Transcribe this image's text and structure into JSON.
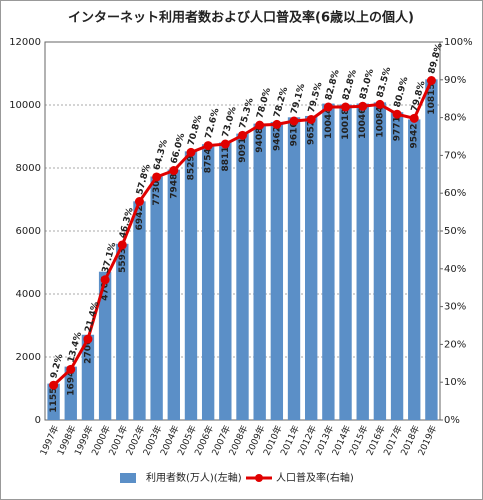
{
  "chart_data": {
    "type": "bar",
    "title": "インターネット利用者数および人口普及率(6歳以上の個人)",
    "categories": [
      "1997年",
      "1998年",
      "1999年",
      "2000年",
      "2001年",
      "2002年",
      "2003年",
      "2004年",
      "2005年",
      "2006年",
      "2007年",
      "2008年",
      "2009年",
      "2010年",
      "2011年",
      "2012年",
      "2013年",
      "2014年",
      "2015年",
      "2016年",
      "2017年",
      "2018年",
      "2019年"
    ],
    "series": [
      {
        "name": "利用者数(万人)(左軸)",
        "type": "bar",
        "color": "#5b8fc7",
        "values": [
          1155,
          1694,
          2706,
          4708,
          5593,
          6942,
          7730,
          7948,
          8529,
          8754,
          8811,
          9091,
          9408,
          9462,
          9610,
          9652,
          10044,
          10018,
          10046,
          10084,
          9771,
          9542,
          10815
        ]
      },
      {
        "name": "人口普及率(右軸)",
        "type": "line",
        "axis": "y2",
        "color": "#e00000",
        "values": [
          9.2,
          13.4,
          21.4,
          37.1,
          46.3,
          57.8,
          64.3,
          66.0,
          70.8,
          72.6,
          73.0,
          75.3,
          78.0,
          78.2,
          79.1,
          79.5,
          82.8,
          82.8,
          83.0,
          83.5,
          80.9,
          79.8,
          89.8
        ],
        "value_labels": [
          "9.2%",
          "13.4%",
          "21.4%",
          "37.1%",
          "46.3%",
          "57.8%",
          "64.3%",
          "66.0%",
          "70.8%",
          "72.6%",
          "73.0%",
          "75.3%",
          "78.0%",
          "78.2%",
          "79.1%",
          "79.5%",
          "82.8%",
          "82.8%",
          "83.0%",
          "83.5%",
          "80.9%",
          "79.8%",
          "89.8%"
        ]
      }
    ],
    "ylim": [
      0,
      12000
    ],
    "yticks": [
      0,
      2000,
      4000,
      6000,
      8000,
      10000,
      12000
    ],
    "y2lim": [
      0,
      100
    ],
    "y2ticks": [
      {
        "value": 0,
        "label": "0%"
      },
      {
        "value": 10,
        "label": "10%"
      },
      {
        "value": 20,
        "label": "20%"
      },
      {
        "value": 30,
        "label": "30%"
      },
      {
        "value": 40,
        "label": "40%"
      },
      {
        "value": 50,
        "label": "50%"
      },
      {
        "value": 60,
        "label": "60%"
      },
      {
        "value": 70,
        "label": "70%"
      },
      {
        "value": 80,
        "label": "80%"
      },
      {
        "value": 90,
        "label": "90%"
      },
      {
        "value": 100,
        "label": "100%"
      }
    ],
    "grid": true
  }
}
